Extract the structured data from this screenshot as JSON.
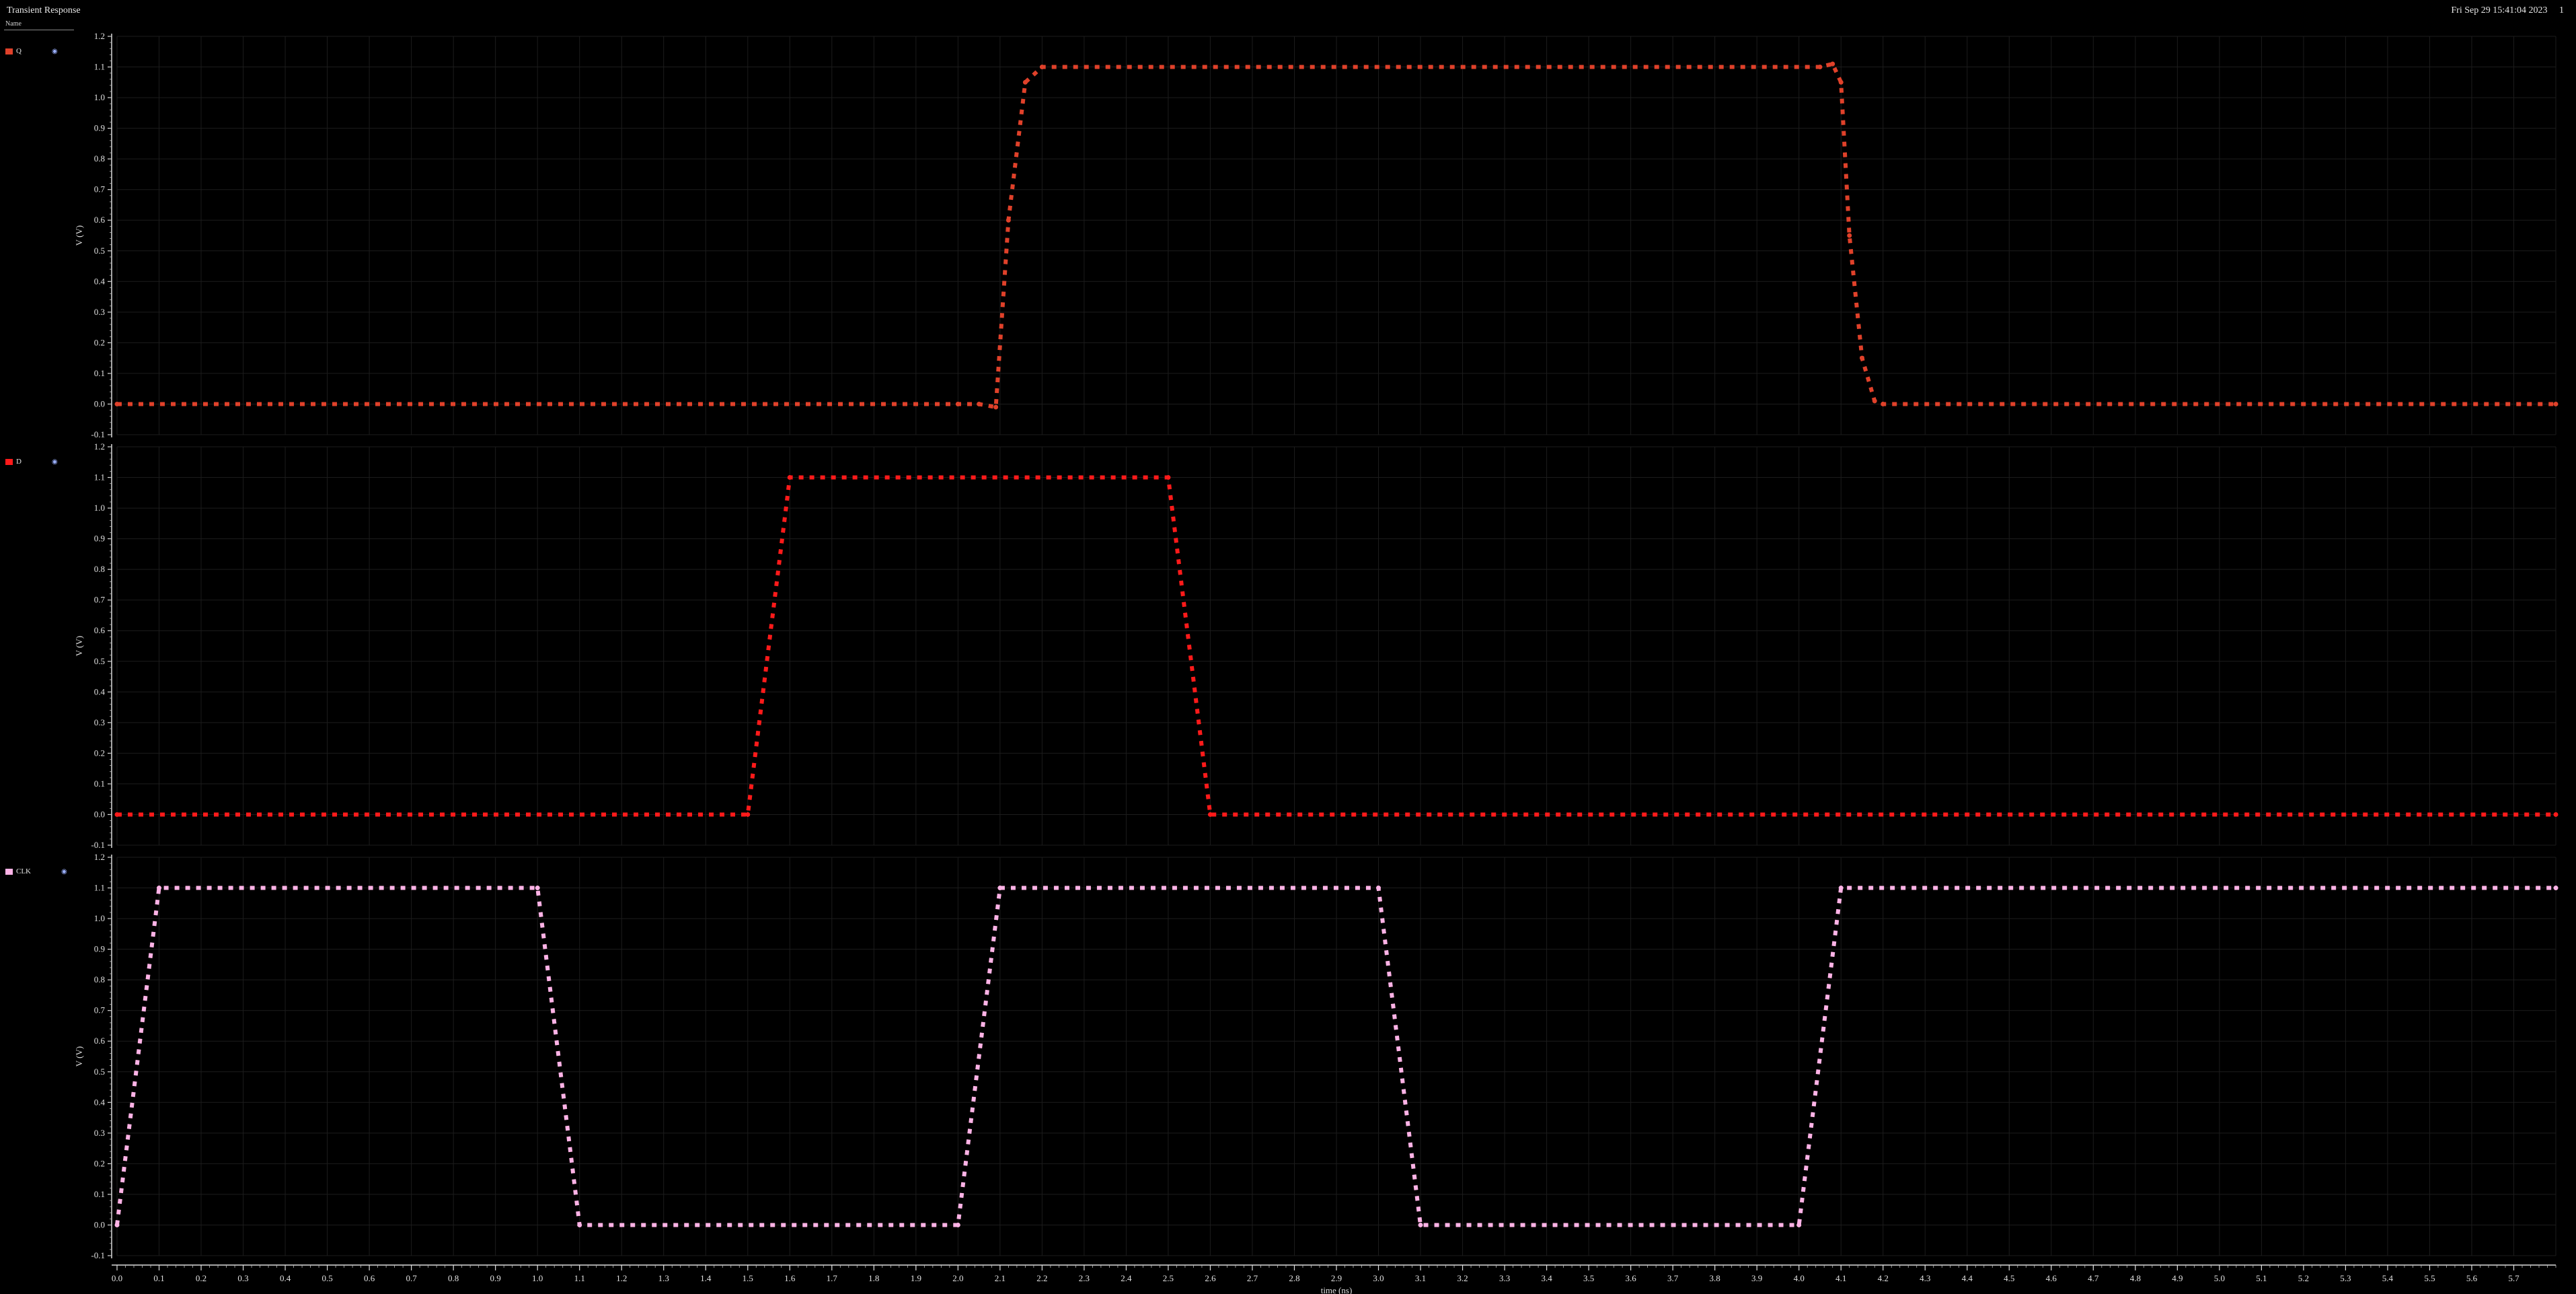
{
  "window": {
    "title": "Transient Response",
    "name_header": "Name",
    "timestamp": "Fri Sep 29 15:41:04 2023",
    "page_indicator": "1"
  },
  "colors": {
    "background": "#000000",
    "grid": "#1c1c1c",
    "Q": "#e0412a",
    "D": "#ff1a1a",
    "CLK": "#ffb3e6"
  },
  "icons": {
    "visibility": "eye-icon"
  },
  "chart_data": [
    {
      "type": "line",
      "series": [
        {
          "name": "Q",
          "x": [
            0,
            2.0,
            2.05,
            2.09,
            2.12,
            2.16,
            2.2,
            4.05,
            4.08,
            4.1,
            4.12,
            4.15,
            4.18,
            4.2,
            5.8
          ],
          "y": [
            0,
            0,
            0,
            -0.01,
            0.6,
            1.05,
            1.1,
            1.1,
            1.11,
            1.05,
            0.55,
            0.15,
            0.01,
            0,
            0
          ]
        }
      ],
      "ylabel": "V (V)",
      "ylim": [
        -0.1,
        1.2
      ],
      "yticks": [
        "-0.1",
        "0.0",
        "0.1",
        "0.2",
        "0.3",
        "0.4",
        "0.5",
        "0.6",
        "0.7",
        "0.8",
        "0.9",
        "1.0",
        "1.1",
        "1.2"
      ],
      "xlim": [
        0,
        5.8
      ],
      "grid": true
    },
    {
      "type": "line",
      "series": [
        {
          "name": "D",
          "x": [
            0,
            1.5,
            1.6,
            2.5,
            2.6,
            5.8
          ],
          "y": [
            0,
            0,
            1.1,
            1.1,
            0,
            0
          ]
        }
      ],
      "ylabel": "V (V)",
      "ylim": [
        -0.1,
        1.2
      ],
      "yticks": [
        "-0.1",
        "0.0",
        "0.1",
        "0.2",
        "0.3",
        "0.4",
        "0.5",
        "0.6",
        "0.7",
        "0.8",
        "0.9",
        "1.0",
        "1.1",
        "1.2"
      ],
      "xlim": [
        0,
        5.8
      ],
      "grid": true
    },
    {
      "type": "line",
      "series": [
        {
          "name": "CLK",
          "x": [
            0,
            0.1,
            1.0,
            1.1,
            2.0,
            2.1,
            3.0,
            3.1,
            4.0,
            4.1,
            5.8
          ],
          "y": [
            0,
            1.1,
            1.1,
            0,
            0,
            1.1,
            1.1,
            0,
            0,
            1.1,
            1.1
          ]
        }
      ],
      "ylabel": "V (V)",
      "ylim": [
        -0.1,
        1.2
      ],
      "yticks": [
        "-0.1",
        "0.0",
        "0.1",
        "0.2",
        "0.3",
        "0.4",
        "0.5",
        "0.6",
        "0.7",
        "0.8",
        "0.9",
        "1.0",
        "1.1",
        "1.2"
      ],
      "xlim": [
        0,
        5.8
      ],
      "xlabel": "time (ns)",
      "xticks": [
        "0.0",
        "0.1",
        "0.2",
        "0.3",
        "0.4",
        "0.5",
        "0.6",
        "0.7",
        "0.8",
        "0.9",
        "1.0",
        "1.1",
        "1.2",
        "1.3",
        "1.4",
        "1.5",
        "1.6",
        "1.7",
        "1.8",
        "1.9",
        "2.0",
        "2.1",
        "2.2",
        "2.3",
        "2.4",
        "2.5",
        "2.6",
        "2.7",
        "2.8",
        "2.9",
        "3.0",
        "3.1",
        "3.2",
        "3.3",
        "3.4",
        "3.5",
        "3.6",
        "3.7",
        "3.8",
        "3.9",
        "4.0",
        "4.1",
        "4.2",
        "4.3",
        "4.4",
        "4.5",
        "4.6",
        "4.7",
        "4.8",
        "4.9",
        "5.0",
        "5.1",
        "5.2",
        "5.3",
        "5.4",
        "5.5",
        "5.6",
        "5.7"
      ],
      "grid": true
    }
  ]
}
